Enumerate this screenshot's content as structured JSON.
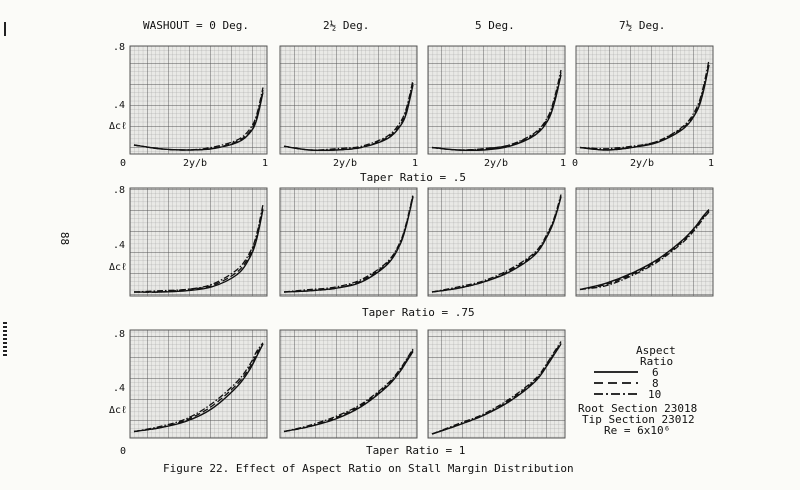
{
  "page_number": "88",
  "column_headers": [
    "WASHOUT = 0 Deg.",
    "2½ Deg.",
    "5 Deg.",
    "7½ Deg."
  ],
  "row_labels": [
    "Taper Ratio = .5",
    "Taper Ratio = .75",
    "Taper Ratio = 1"
  ],
  "caption": "Figure 22. Effect of Aspect Ratio on Stall Margin Distribution",
  "axis": {
    "xlabel": "2y/b",
    "x_tick_start": "0",
    "x_tick_end": "1",
    "ylabel": "Δcℓ",
    "y_ticks": [
      ".8",
      ".4"
    ],
    "y_zero": "0"
  },
  "legend": {
    "title_line1": "Aspect",
    "title_line2": "Ratio",
    "entries": [
      {
        "label": "6",
        "style": "solid"
      },
      {
        "label": "8",
        "style": "dashed"
      },
      {
        "label": "10",
        "style": "dash-dot"
      }
    ],
    "root_section": "Root Section 23018",
    "tip_section": "Tip Section 23012",
    "reynolds": "Re = 6x10⁶"
  },
  "colors": {
    "grid_major": "#555555",
    "grid_minor": "#9a9a9a",
    "panel_bg": "#e9e9e6",
    "curve": "#111111"
  },
  "chart_data": [
    {
      "type": "line",
      "taper_ratio": 0.5,
      "washout_deg": 0,
      "xlim": [
        0,
        1
      ],
      "ylim": [
        0,
        0.8
      ],
      "x": [
        0,
        0.2,
        0.4,
        0.6,
        0.8,
        0.9,
        0.95,
        1.0
      ],
      "series": [
        {
          "name": "6",
          "values": [
            0.04,
            0.01,
            0.0,
            0.01,
            0.06,
            0.14,
            0.24,
            0.46
          ]
        },
        {
          "name": "8",
          "values": [
            0.04,
            0.01,
            0.0,
            0.01,
            0.07,
            0.15,
            0.26,
            0.48
          ]
        },
        {
          "name": "10",
          "values": [
            0.04,
            0.01,
            0.0,
            0.02,
            0.08,
            0.17,
            0.28,
            0.5
          ]
        }
      ]
    },
    {
      "type": "line",
      "taper_ratio": 0.5,
      "washout_deg": 2.5,
      "xlim": [
        0,
        1
      ],
      "ylim": [
        0,
        0.8
      ],
      "x": [
        0,
        0.2,
        0.4,
        0.6,
        0.8,
        0.9,
        0.95,
        1.0
      ],
      "series": [
        {
          "name": "6",
          "values": [
            0.03,
            0.0,
            0.0,
            0.02,
            0.09,
            0.19,
            0.3,
            0.52
          ]
        },
        {
          "name": "8",
          "values": [
            0.03,
            0.0,
            0.0,
            0.02,
            0.1,
            0.2,
            0.32,
            0.54
          ]
        },
        {
          "name": "10",
          "values": [
            0.03,
            0.0,
            0.01,
            0.03,
            0.11,
            0.22,
            0.34,
            0.56
          ]
        }
      ]
    },
    {
      "type": "line",
      "taper_ratio": 0.5,
      "washout_deg": 5,
      "xlim": [
        0,
        1
      ],
      "ylim": [
        0,
        0.8
      ],
      "x": [
        0,
        0.2,
        0.4,
        0.6,
        0.8,
        0.9,
        0.95,
        1.0
      ],
      "series": [
        {
          "name": "6",
          "values": [
            0.02,
            0.0,
            0.0,
            0.03,
            0.12,
            0.24,
            0.38,
            0.6
          ]
        },
        {
          "name": "8",
          "values": [
            0.02,
            0.0,
            0.01,
            0.04,
            0.13,
            0.26,
            0.4,
            0.62
          ]
        },
        {
          "name": "10",
          "values": [
            0.02,
            0.0,
            0.01,
            0.04,
            0.14,
            0.27,
            0.42,
            0.64
          ]
        }
      ]
    },
    {
      "type": "line",
      "taper_ratio": 0.5,
      "washout_deg": 7.5,
      "xlim": [
        0,
        1
      ],
      "ylim": [
        0,
        0.8
      ],
      "x": [
        0,
        0.2,
        0.4,
        0.6,
        0.8,
        0.9,
        0.95,
        1.0
      ],
      "series": [
        {
          "name": "6",
          "values": [
            0.02,
            0.0,
            0.02,
            0.06,
            0.17,
            0.3,
            0.44,
            0.68
          ]
        },
        {
          "name": "8",
          "values": [
            0.02,
            0.0,
            0.02,
            0.07,
            0.18,
            0.31,
            0.46,
            0.7
          ]
        },
        {
          "name": "10",
          "values": [
            0.02,
            0.01,
            0.03,
            0.07,
            0.19,
            0.33,
            0.48,
            0.72
          ]
        }
      ]
    },
    {
      "type": "line",
      "taper_ratio": 0.75,
      "washout_deg": 0,
      "xlim": [
        0,
        1
      ],
      "ylim": [
        0,
        0.8
      ],
      "x": [
        0,
        0.2,
        0.4,
        0.6,
        0.8,
        0.9,
        0.95,
        1.0
      ],
      "series": [
        {
          "name": "6",
          "values": [
            0.0,
            0.0,
            0.01,
            0.04,
            0.14,
            0.28,
            0.42,
            0.66
          ]
        },
        {
          "name": "8",
          "values": [
            0.0,
            0.0,
            0.02,
            0.05,
            0.16,
            0.3,
            0.44,
            0.68
          ]
        },
        {
          "name": "10",
          "values": [
            0.0,
            0.01,
            0.02,
            0.06,
            0.18,
            0.32,
            0.46,
            0.7
          ]
        }
      ]
    },
    {
      "type": "line",
      "taper_ratio": 0.75,
      "washout_deg": 2.5,
      "xlim": [
        0,
        1
      ],
      "ylim": [
        0,
        0.8
      ],
      "x": [
        0,
        0.2,
        0.4,
        0.6,
        0.8,
        0.9,
        0.95,
        1.0
      ],
      "series": [
        {
          "name": "6",
          "values": [
            0.0,
            0.01,
            0.03,
            0.08,
            0.22,
            0.38,
            0.54,
            0.76
          ]
        },
        {
          "name": "8",
          "values": [
            0.0,
            0.01,
            0.03,
            0.09,
            0.23,
            0.39,
            0.55,
            0.77
          ]
        },
        {
          "name": "10",
          "values": [
            0.0,
            0.02,
            0.04,
            0.1,
            0.24,
            0.4,
            0.56,
            0.78
          ]
        }
      ]
    },
    {
      "type": "line",
      "taper_ratio": 0.75,
      "washout_deg": 5,
      "xlim": [
        0,
        1
      ],
      "ylim": [
        0,
        0.8
      ],
      "x": [
        0,
        0.2,
        0.4,
        0.6,
        0.8,
        0.9,
        0.95,
        1.0
      ],
      "series": [
        {
          "name": "6",
          "values": [
            0.0,
            0.03,
            0.08,
            0.16,
            0.3,
            0.46,
            0.58,
            0.76
          ]
        },
        {
          "name": "8",
          "values": [
            0.0,
            0.03,
            0.08,
            0.17,
            0.31,
            0.47,
            0.59,
            0.77
          ]
        },
        {
          "name": "10",
          "values": [
            0.0,
            0.04,
            0.09,
            0.18,
            0.32,
            0.48,
            0.6,
            0.78
          ]
        }
      ]
    },
    {
      "type": "line",
      "taper_ratio": 0.75,
      "washout_deg": 7.5,
      "xlim": [
        0,
        1
      ],
      "ylim": [
        0,
        0.8
      ],
      "x": [
        0,
        0.2,
        0.4,
        0.6,
        0.8,
        0.9,
        0.95,
        1.0
      ],
      "series": [
        {
          "name": "6",
          "values": [
            0.02,
            0.07,
            0.15,
            0.26,
            0.42,
            0.53,
            0.6,
            0.66
          ]
        },
        {
          "name": "8",
          "values": [
            0.02,
            0.06,
            0.14,
            0.25,
            0.41,
            0.52,
            0.59,
            0.65
          ]
        },
        {
          "name": "10",
          "values": [
            0.02,
            0.05,
            0.13,
            0.24,
            0.4,
            0.51,
            0.58,
            0.64
          ]
        }
      ]
    },
    {
      "type": "line",
      "taper_ratio": 1,
      "washout_deg": 0,
      "xlim": [
        0,
        1
      ],
      "ylim": [
        0,
        0.8
      ],
      "x": [
        0,
        0.2,
        0.4,
        0.6,
        0.8,
        0.9,
        0.95,
        1.0
      ],
      "series": [
        {
          "name": "6",
          "values": [
            0.02,
            0.05,
            0.1,
            0.2,
            0.38,
            0.52,
            0.62,
            0.72
          ]
        },
        {
          "name": "8",
          "values": [
            0.02,
            0.05,
            0.11,
            0.22,
            0.4,
            0.54,
            0.64,
            0.72
          ]
        },
        {
          "name": "10",
          "values": [
            0.02,
            0.06,
            0.12,
            0.24,
            0.42,
            0.56,
            0.66,
            0.73
          ]
        }
      ]
    },
    {
      "type": "line",
      "taper_ratio": 1,
      "washout_deg": 2.5,
      "xlim": [
        0,
        1
      ],
      "ylim": [
        0,
        0.8
      ],
      "x": [
        0,
        0.2,
        0.4,
        0.6,
        0.8,
        0.9,
        0.95,
        1.0
      ],
      "series": [
        {
          "name": "6",
          "values": [
            0.02,
            0.06,
            0.12,
            0.22,
            0.38,
            0.5,
            0.58,
            0.66
          ]
        },
        {
          "name": "8",
          "values": [
            0.02,
            0.06,
            0.13,
            0.23,
            0.39,
            0.51,
            0.59,
            0.67
          ]
        },
        {
          "name": "10",
          "values": [
            0.02,
            0.07,
            0.14,
            0.24,
            0.4,
            0.52,
            0.6,
            0.68
          ]
        }
      ]
    },
    {
      "type": "line",
      "taper_ratio": 1,
      "washout_deg": 5,
      "xlim": [
        0,
        1
      ],
      "ylim": [
        0,
        0.8
      ],
      "x": [
        0,
        0.2,
        0.4,
        0.6,
        0.8,
        0.9,
        0.95,
        1.0
      ],
      "series": [
        {
          "name": "6",
          "values": [
            0.0,
            0.07,
            0.15,
            0.26,
            0.42,
            0.56,
            0.64,
            0.72
          ]
        },
        {
          "name": "8",
          "values": [
            0.0,
            0.07,
            0.15,
            0.27,
            0.43,
            0.57,
            0.65,
            0.73
          ]
        },
        {
          "name": "10",
          "values": [
            0.0,
            0.08,
            0.16,
            0.28,
            0.44,
            0.58,
            0.66,
            0.74
          ]
        }
      ]
    }
  ]
}
